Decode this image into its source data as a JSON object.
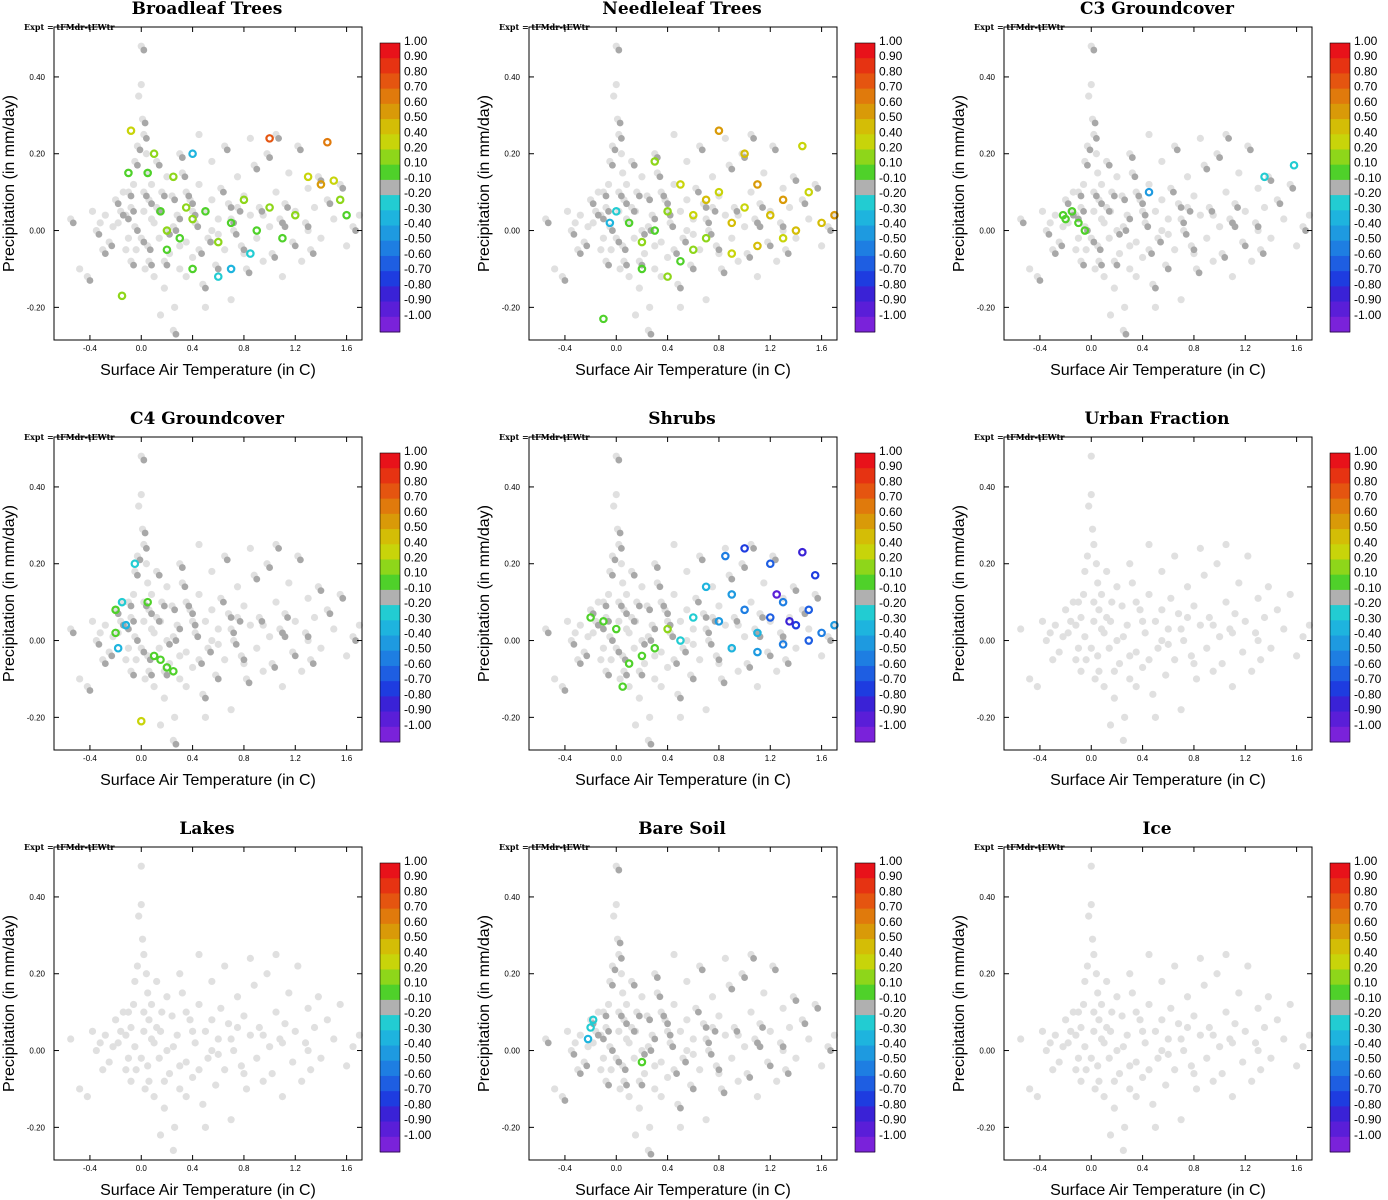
{
  "figure": {
    "experiment_label": "Expt = tFMdr-tEWtr"
  },
  "panels": [
    {
      "title": "Broadleaf Trees",
      "highlight": "broadleaf"
    },
    {
      "title": "Needleleaf Trees",
      "highlight": "needleleaf"
    },
    {
      "title": "C3 Groundcover",
      "highlight": "c3"
    },
    {
      "title": "C4 Groundcover",
      "highlight": "c4"
    },
    {
      "title": "Shrubs",
      "highlight": "shrubs"
    },
    {
      "title": "Urban Fraction",
      "highlight": "none"
    },
    {
      "title": "Lakes",
      "highlight": "none"
    },
    {
      "title": "Bare Soil",
      "highlight": "bare"
    },
    {
      "title": "Ice",
      "highlight": "none"
    }
  ],
  "colorbar": {
    "labels": [
      "1.00",
      "0.90",
      "0.80",
      "0.70",
      "0.60",
      "0.50",
      "0.40",
      "0.20",
      "0.10",
      "-0.10",
      "-0.20",
      "-0.30",
      "-0.40",
      "-0.50",
      "-0.60",
      "-0.70",
      "-0.80",
      "-0.90",
      "-1.00"
    ],
    "colors": [
      "#e8121a",
      "#e63312",
      "#e55510",
      "#e07a0c",
      "#d99a08",
      "#d4bd06",
      "#c8d40a",
      "#8ed61a",
      "#4fd12a",
      "#b0b0b0",
      "#22ccd2",
      "#1eb4de",
      "#1e9ae0",
      "#1e7ee2",
      "#1e5ee2",
      "#1e3ce0",
      "#3a22d6",
      "#5a1ed8",
      "#7a22da"
    ]
  },
  "chart_data": {
    "type": "scatter",
    "xlabel": "Surface Air Temperature (in C)",
    "ylabel": "Precipitation (in mm/day)",
    "xlim": [
      -0.68,
      1.72
    ],
    "ylim": [
      -0.285,
      0.53
    ],
    "xticks": [
      "-0.4",
      "0.0",
      "0.4",
      "0.8",
      "1.2",
      "1.6"
    ],
    "yticks": [
      "-0.20",
      "0.00",
      "0.20",
      "0.40"
    ],
    "background_points": [
      [
        -0.55,
        0.03
      ],
      [
        -0.48,
        -0.1
      ],
      [
        -0.42,
        -0.12
      ],
      [
        -0.38,
        0.05
      ],
      [
        -0.35,
        0.0
      ],
      [
        -0.32,
        0.02
      ],
      [
        -0.3,
        -0.05
      ],
      [
        -0.28,
        0.04
      ],
      [
        -0.25,
        -0.03
      ],
      [
        -0.22,
        0.01
      ],
      [
        -0.2,
        0.08
      ],
      [
        -0.18,
        0.02
      ],
      [
        -0.16,
        0.05
      ],
      [
        -0.14,
        0.1
      ],
      [
        -0.12,
        0.04
      ],
      [
        -0.1,
        -0.02
      ],
      [
        -0.08,
        0.06
      ],
      [
        -0.06,
        0.12
      ],
      [
        -0.05,
        0.01
      ],
      [
        -0.04,
        -0.05
      ],
      [
        0.0,
        0.48
      ],
      [
        0.0,
        0.38
      ],
      [
        0.01,
        0.29
      ],
      [
        -0.02,
        0.35
      ],
      [
        0.02,
        0.25
      ],
      [
        0.04,
        0.2
      ],
      [
        -0.03,
        0.22
      ],
      [
        0.05,
        0.15
      ],
      [
        0.06,
        -0.08
      ],
      [
        0.08,
        0.03
      ],
      [
        -0.05,
        0.18
      ],
      [
        0.1,
        -0.12
      ],
      [
        0.12,
        0.06
      ],
      [
        0.14,
        -0.02
      ],
      [
        0.16,
        0.1
      ],
      [
        0.18,
        -0.15
      ],
      [
        0.2,
        0.0
      ],
      [
        0.22,
        -0.06
      ],
      [
        0.24,
        0.09
      ],
      [
        0.26,
        -0.2
      ],
      [
        0.0,
        -0.02
      ],
      [
        0.02,
        0.05
      ],
      [
        0.05,
        -0.04
      ],
      [
        0.08,
        0.12
      ],
      [
        -0.08,
        -0.08
      ],
      [
        0.03,
        -0.1
      ],
      [
        0.06,
        0.08
      ],
      [
        0.1,
        0.02
      ],
      [
        -0.1,
        0.1
      ],
      [
        -0.12,
        -0.05
      ],
      [
        0.28,
        0.04
      ],
      [
        0.3,
        -0.1
      ],
      [
        0.32,
        0.15
      ],
      [
        0.35,
        -0.03
      ],
      [
        0.38,
        0.08
      ],
      [
        0.4,
        -0.07
      ],
      [
        0.42,
        0.02
      ],
      [
        0.45,
        0.12
      ],
      [
        0.48,
        -0.14
      ],
      [
        0.5,
        0.05
      ],
      [
        0.52,
        -0.02
      ],
      [
        0.55,
        0.18
      ],
      [
        0.58,
        -0.09
      ],
      [
        0.6,
        0.03
      ],
      [
        0.62,
        0.11
      ],
      [
        0.65,
        -0.05
      ],
      [
        0.68,
        0.07
      ],
      [
        0.7,
        -0.18
      ],
      [
        0.72,
        0.0
      ],
      [
        0.75,
        0.14
      ],
      [
        0.78,
        -0.04
      ],
      [
        0.8,
        0.09
      ],
      [
        0.82,
        -0.1
      ],
      [
        0.85,
        0.04
      ],
      [
        0.88,
        0.17
      ],
      [
        0.9,
        -0.02
      ],
      [
        0.92,
        0.06
      ],
      [
        0.95,
        -0.08
      ],
      [
        0.98,
        0.2
      ],
      [
        1.0,
        0.01
      ],
      [
        1.02,
        -0.06
      ],
      [
        1.05,
        0.1
      ],
      [
        1.08,
        0.03
      ],
      [
        1.1,
        -0.12
      ],
      [
        1.12,
        0.07
      ],
      [
        1.15,
        0.15
      ],
      [
        1.18,
        -0.03
      ],
      [
        1.2,
        0.05
      ],
      [
        1.22,
        0.22
      ],
      [
        1.25,
        -0.08
      ],
      [
        1.28,
        0.02
      ],
      [
        1.3,
        0.11
      ],
      [
        1.32,
        -0.05
      ],
      [
        1.35,
        0.06
      ],
      [
        1.38,
        0.14
      ],
      [
        1.4,
        -0.02
      ],
      [
        1.45,
        0.08
      ],
      [
        1.5,
        0.03
      ],
      [
        1.55,
        0.12
      ],
      [
        1.6,
        -0.04
      ],
      [
        1.65,
        0.01
      ],
      [
        1.7,
        0.04
      ],
      [
        0.3,
        0.2
      ],
      [
        0.45,
        0.25
      ],
      [
        0.65,
        0.22
      ],
      [
        0.85,
        0.24
      ],
      [
        1.05,
        0.25
      ],
      [
        0.15,
        -0.22
      ],
      [
        0.25,
        -0.26
      ],
      [
        0.5,
        -0.2
      ],
      [
        0.12,
        0.18
      ],
      [
        0.2,
        0.14
      ],
      [
        0.35,
        0.1
      ],
      [
        0.55,
        0.08
      ],
      [
        0.75,
        0.06
      ],
      [
        0.95,
        0.04
      ],
      [
        0.18,
        -0.08
      ],
      [
        0.3,
        -0.04
      ],
      [
        0.4,
        0.05
      ],
      [
        0.6,
        -0.01
      ],
      [
        0.7,
        0.03
      ],
      [
        0.8,
        -0.06
      ],
      [
        1.1,
        0.02
      ],
      [
        1.3,
        0.0
      ],
      [
        0.02,
        0.1
      ],
      [
        0.15,
        0.05
      ],
      [
        0.25,
        0.01
      ],
      [
        0.35,
        -0.12
      ],
      [
        0.45,
        -0.05
      ],
      [
        0.55,
        0.0
      ]
    ],
    "highlight_groups": {
      "broadleaf": [
        [
          0.1,
          0.2,
          0.2
        ],
        [
          0.05,
          0.15,
          0.1
        ],
        [
          -0.1,
          0.15,
          0.1
        ],
        [
          0.15,
          0.05,
          0.1
        ],
        [
          0.2,
          0.0,
          0.2
        ],
        [
          0.3,
          -0.02,
          0.1
        ],
        [
          0.4,
          0.03,
          0.2
        ],
        [
          0.5,
          0.05,
          0.1
        ],
        [
          0.6,
          -0.03,
          0.2
        ],
        [
          0.7,
          0.02,
          0.1
        ],
        [
          0.8,
          0.08,
          0.2
        ],
        [
          0.9,
          0.0,
          0.1
        ],
        [
          1.0,
          0.06,
          0.2
        ],
        [
          1.1,
          -0.02,
          0.1
        ],
        [
          1.2,
          0.04,
          0.2
        ],
        [
          1.3,
          0.14,
          0.4
        ],
        [
          1.4,
          0.12,
          0.6
        ],
        [
          1.45,
          0.23,
          0.7
        ],
        [
          1.0,
          0.24,
          0.8
        ],
        [
          1.5,
          0.13,
          0.4
        ],
        [
          1.55,
          0.08,
          0.2
        ],
        [
          1.6,
          0.04,
          0.1
        ],
        [
          0.25,
          0.14,
          0.2
        ],
        [
          -0.08,
          0.26,
          0.4
        ],
        [
          -0.15,
          -0.17,
          0.2
        ],
        [
          0.4,
          -0.1,
          0.1
        ],
        [
          0.6,
          -0.12,
          -0.2
        ],
        [
          0.7,
          -0.1,
          -0.3
        ],
        [
          0.85,
          -0.06,
          -0.2
        ],
        [
          0.4,
          0.2,
          -0.3
        ],
        [
          0.2,
          -0.05,
          0.1
        ],
        [
          0.35,
          0.06,
          0.2
        ]
      ],
      "needleleaf": [
        [
          0.6,
          0.04,
          0.4
        ],
        [
          0.7,
          0.08,
          0.5
        ],
        [
          0.8,
          0.1,
          0.4
        ],
        [
          0.9,
          0.02,
          0.5
        ],
        [
          1.0,
          0.06,
          0.4
        ],
        [
          1.1,
          0.12,
          0.6
        ],
        [
          1.2,
          0.04,
          0.5
        ],
        [
          1.3,
          0.08,
          0.6
        ],
        [
          1.4,
          0.0,
          0.5
        ],
        [
          1.5,
          0.1,
          0.4
        ],
        [
          1.6,
          0.02,
          0.5
        ],
        [
          1.7,
          0.04,
          0.6
        ],
        [
          0.8,
          0.26,
          0.6
        ],
        [
          1.0,
          0.2,
          0.5
        ],
        [
          0.5,
          0.12,
          0.4
        ],
        [
          0.4,
          0.05,
          0.2
        ],
        [
          0.3,
          0.0,
          0.1
        ],
        [
          0.2,
          -0.03,
          0.2
        ],
        [
          0.1,
          0.02,
          0.1
        ],
        [
          0.2,
          -0.1,
          0.1
        ],
        [
          0.4,
          -0.12,
          0.2
        ],
        [
          0.5,
          -0.08,
          0.1
        ],
        [
          0.6,
          -0.05,
          0.2
        ],
        [
          -0.1,
          -0.23,
          0.1
        ],
        [
          0.9,
          -0.06,
          0.4
        ],
        [
          1.1,
          -0.04,
          0.5
        ],
        [
          1.3,
          -0.02,
          0.4
        ],
        [
          1.45,
          0.22,
          0.4
        ],
        [
          0.3,
          0.18,
          0.2
        ],
        [
          -0.05,
          0.02,
          -0.3
        ],
        [
          0.0,
          0.05,
          -0.2
        ],
        [
          0.7,
          -0.02,
          0.3
        ]
      ],
      "c3": [
        [
          -0.2,
          0.03,
          0.1
        ],
        [
          -0.15,
          0.05,
          0.1
        ],
        [
          -0.1,
          0.02,
          0.1
        ],
        [
          -0.05,
          0.0,
          0.1
        ],
        [
          -0.22,
          0.04,
          0.1
        ],
        [
          1.35,
          0.14,
          -0.2
        ],
        [
          1.58,
          0.17,
          -0.2
        ],
        [
          0.45,
          0.1,
          -0.4
        ]
      ],
      "c4": [
        [
          -0.2,
          0.08,
          0.1
        ],
        [
          -0.15,
          0.1,
          -0.2
        ],
        [
          -0.12,
          0.04,
          -0.3
        ],
        [
          0.0,
          -0.21,
          0.4
        ],
        [
          0.15,
          -0.05,
          0.1
        ],
        [
          0.2,
          -0.07,
          0.1
        ],
        [
          0.25,
          -0.08,
          0.1
        ],
        [
          0.1,
          -0.04,
          0.1
        ],
        [
          0.05,
          0.1,
          0.1
        ],
        [
          -0.2,
          0.02,
          0.1
        ],
        [
          -0.18,
          -0.02,
          -0.3
        ],
        [
          -0.05,
          0.2,
          -0.2
        ]
      ],
      "shrubs": [
        [
          0.8,
          0.05,
          -0.4
        ],
        [
          0.9,
          0.12,
          -0.4
        ],
        [
          1.0,
          0.08,
          -0.5
        ],
        [
          1.1,
          0.02,
          -0.3
        ],
        [
          1.2,
          0.06,
          -0.6
        ],
        [
          1.3,
          0.1,
          -0.5
        ],
        [
          1.4,
          0.04,
          -0.7
        ],
        [
          1.5,
          0.08,
          -0.6
        ],
        [
          1.6,
          0.02,
          -0.5
        ],
        [
          1.7,
          0.04,
          -0.4
        ],
        [
          1.45,
          0.23,
          -0.8
        ],
        [
          1.55,
          0.17,
          -0.7
        ],
        [
          1.2,
          0.2,
          -0.6
        ],
        [
          1.0,
          0.24,
          -0.7
        ],
        [
          0.85,
          0.22,
          -0.5
        ],
        [
          0.7,
          0.14,
          -0.3
        ],
        [
          0.6,
          0.06,
          -0.2
        ],
        [
          0.5,
          0.0,
          -0.2
        ],
        [
          0.4,
          0.03,
          0.2
        ],
        [
          0.3,
          -0.02,
          0.1
        ],
        [
          0.2,
          -0.04,
          0.1
        ],
        [
          0.1,
          -0.06,
          0.1
        ],
        [
          0.0,
          0.03,
          0.1
        ],
        [
          -0.1,
          0.05,
          0.1
        ],
        [
          -0.2,
          0.06,
          0.1
        ],
        [
          0.05,
          -0.12,
          0.1
        ],
        [
          0.9,
          -0.02,
          -0.3
        ],
        [
          1.1,
          -0.03,
          -0.4
        ],
        [
          1.3,
          -0.01,
          -0.5
        ],
        [
          1.5,
          0.0,
          -0.6
        ],
        [
          1.25,
          0.12,
          -0.9
        ],
        [
          1.35,
          0.05,
          -0.8
        ]
      ],
      "bare": [
        [
          -0.2,
          0.06,
          -0.2
        ],
        [
          -0.22,
          0.03,
          -0.3
        ],
        [
          -0.18,
          0.08,
          -0.2
        ],
        [
          0.2,
          -0.03,
          0.1
        ]
      ],
      "none": []
    }
  }
}
